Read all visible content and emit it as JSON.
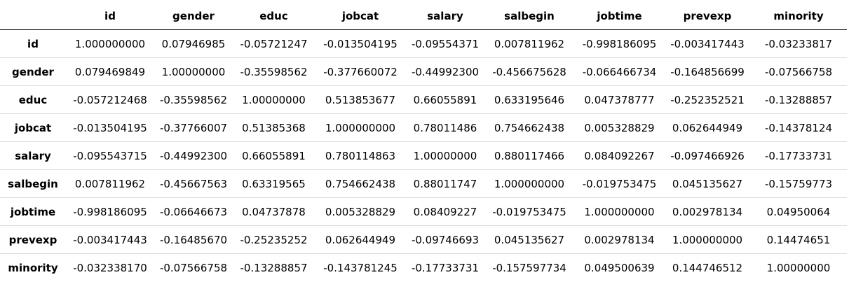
{
  "table": {
    "columns": [
      "",
      "id",
      "gender",
      "educ",
      "jobcat",
      "salary",
      "salbegin",
      "jobtime",
      "prevexp",
      "minority"
    ],
    "rows": [
      {
        "label": "id",
        "cells": [
          "1.000000000",
          "0.07946985",
          "-0.05721247",
          "-0.013504195",
          "-0.09554371",
          "0.007811962",
          "-0.998186095",
          "-0.003417443",
          "-0.03233817"
        ]
      },
      {
        "label": "gender",
        "cells": [
          "0.079469849",
          "1.00000000",
          "-0.35598562",
          "-0.377660072",
          "-0.44992300",
          "-0.456675628",
          "-0.066466734",
          "-0.164856699",
          "-0.07566758"
        ]
      },
      {
        "label": "educ",
        "cells": [
          "-0.057212468",
          "-0.35598562",
          "1.00000000",
          "0.513853677",
          "0.66055891",
          "0.633195646",
          "0.047378777",
          "-0.252352521",
          "-0.13288857"
        ]
      },
      {
        "label": "jobcat",
        "cells": [
          "-0.013504195",
          "-0.37766007",
          "0.51385368",
          "1.000000000",
          "0.78011486",
          "0.754662438",
          "0.005328829",
          "0.062644949",
          "-0.14378124"
        ]
      },
      {
        "label": "salary",
        "cells": [
          "-0.095543715",
          "-0.44992300",
          "0.66055891",
          "0.780114863",
          "1.00000000",
          "0.880117466",
          "0.084092267",
          "-0.097466926",
          "-0.17733731"
        ]
      },
      {
        "label": "salbegin",
        "cells": [
          "0.007811962",
          "-0.45667563",
          "0.63319565",
          "0.754662438",
          "0.88011747",
          "1.000000000",
          "-0.019753475",
          "0.045135627",
          "-0.15759773"
        ]
      },
      {
        "label": "jobtime",
        "cells": [
          "-0.998186095",
          "-0.06646673",
          "0.04737878",
          "0.005328829",
          "0.08409227",
          "-0.019753475",
          "1.000000000",
          "0.002978134",
          "0.04950064"
        ]
      },
      {
        "label": "prevexp",
        "cells": [
          "-0.003417443",
          "-0.16485670",
          "-0.25235252",
          "0.062644949",
          "-0.09746693",
          "0.045135627",
          "0.002978134",
          "1.000000000",
          "0.14474651"
        ]
      },
      {
        "label": "minority",
        "cells": [
          "-0.032338170",
          "-0.07566758",
          "-0.13288857",
          "-0.143781245",
          "-0.17733731",
          "-0.157597734",
          "0.049500639",
          "0.144746512",
          "1.00000000"
        ]
      }
    ]
  }
}
